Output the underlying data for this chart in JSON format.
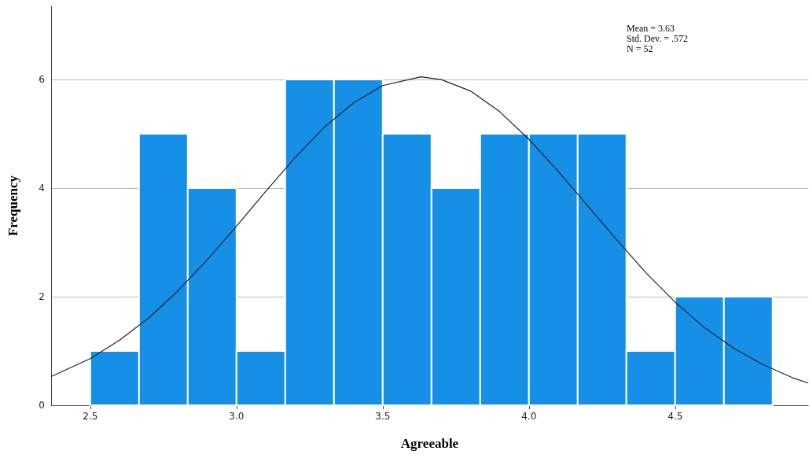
{
  "chart_data": {
    "type": "histogram",
    "xlabel": "Agreeable",
    "ylabel": "Frequency",
    "bins": [
      2.5,
      2.6667,
      2.8333,
      3.0,
      3.1667,
      3.3333,
      3.5,
      3.6667,
      3.8333,
      4.0,
      4.1667,
      4.3333,
      4.5,
      4.6667,
      4.8333
    ],
    "values": [
      1,
      5,
      4,
      1,
      6,
      6,
      5,
      4,
      5,
      5,
      5,
      1,
      2,
      2
    ],
    "color": "#1690e6",
    "series": [
      {
        "type": "line",
        "color": "#222222",
        "marker": "none",
        "x": [
          2.366,
          2.5,
          2.6,
          2.7,
          2.8,
          2.9,
          3.0,
          3.1,
          3.2,
          3.3,
          3.4,
          3.5,
          3.63,
          3.7,
          3.8,
          3.9,
          4.0,
          4.1,
          4.2,
          4.3,
          4.4,
          4.5,
          4.6,
          4.7,
          4.8,
          4.9,
          4.955
        ],
        "values": [
          0.53,
          0.86,
          1.2,
          1.61,
          2.11,
          2.68,
          3.3,
          3.94,
          4.56,
          5.12,
          5.57,
          5.89,
          6.05,
          6.0,
          5.79,
          5.41,
          4.9,
          4.31,
          3.68,
          3.05,
          2.44,
          1.9,
          1.43,
          1.05,
          0.75,
          0.51,
          0.41
        ]
      }
    ],
    "xlim": [
      2.366,
      4.955
    ],
    "xticks": [
      2.5,
      {
        "value": 3,
        "label": "3.0"
      },
      3.5,
      {
        "value": 4,
        "label": "4.0"
      },
      4.5
    ],
    "ylim": [
      0,
      7.35
    ],
    "yticks": [
      0,
      2,
      4,
      6
    ],
    "grid": "y",
    "annotations": [
      "Mean = 3.63",
      "Std. Dev. = .572",
      "N = 52"
    ]
  }
}
